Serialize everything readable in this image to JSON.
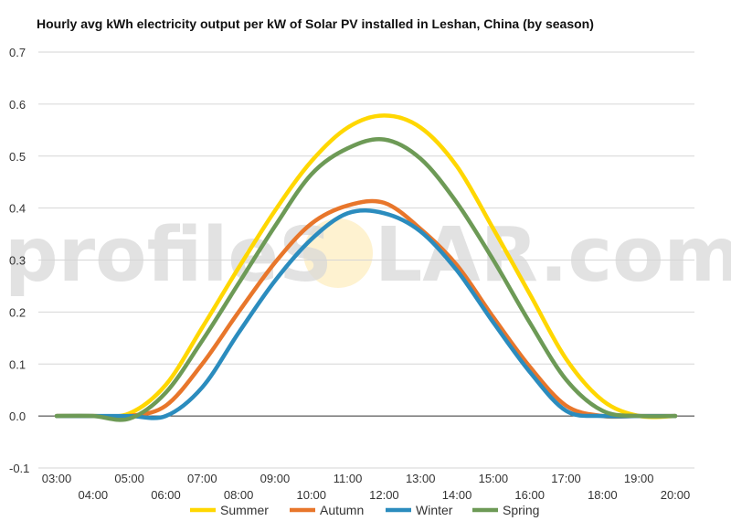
{
  "watermark": {
    "left": "profileS",
    "right": "LAR.com"
  },
  "chart_data": {
    "type": "line",
    "title": "Hourly avg kWh electricity output per kW of Solar PV installed in Leshan, China (by season)",
    "xlabel": "",
    "ylabel": "",
    "ylim": [
      -0.1,
      0.7
    ],
    "yticks": [
      "-0.1",
      "0.0",
      "0.1",
      "0.2",
      "0.3",
      "0.4",
      "0.5",
      "0.6",
      "0.7"
    ],
    "x": [
      "03:00",
      "04:00",
      "05:00",
      "06:00",
      "07:00",
      "08:00",
      "09:00",
      "10:00",
      "11:00",
      "12:00",
      "13:00",
      "14:00",
      "15:00",
      "16:00",
      "17:00",
      "18:00",
      "19:00",
      "20:00"
    ],
    "grid": true,
    "legend_position": "bottom",
    "series": [
      {
        "name": "Summer",
        "color": "#ffd700",
        "values": [
          0.0,
          0.0,
          0.005,
          0.06,
          0.17,
          0.285,
          0.395,
          0.49,
          0.555,
          0.578,
          0.555,
          0.48,
          0.36,
          0.235,
          0.11,
          0.03,
          0.0,
          0.0
        ]
      },
      {
        "name": "Autumn",
        "color": "#e8762b",
        "values": [
          0.0,
          0.0,
          0.0,
          0.02,
          0.1,
          0.2,
          0.295,
          0.37,
          0.405,
          0.41,
          0.36,
          0.29,
          0.19,
          0.095,
          0.02,
          0.0,
          0.0,
          0.0
        ]
      },
      {
        "name": "Winter",
        "color": "#2b8cbe",
        "values": [
          0.0,
          0.0,
          0.0,
          0.0,
          0.055,
          0.16,
          0.26,
          0.34,
          0.39,
          0.39,
          0.355,
          0.28,
          0.18,
          0.085,
          0.01,
          0.0,
          0.0,
          0.0
        ]
      },
      {
        "name": "Spring",
        "color": "#6d9a56",
        "values": [
          0.0,
          0.0,
          -0.005,
          0.045,
          0.145,
          0.255,
          0.365,
          0.465,
          0.515,
          0.532,
          0.495,
          0.41,
          0.3,
          0.18,
          0.07,
          0.01,
          0.0,
          0.0
        ]
      }
    ]
  }
}
